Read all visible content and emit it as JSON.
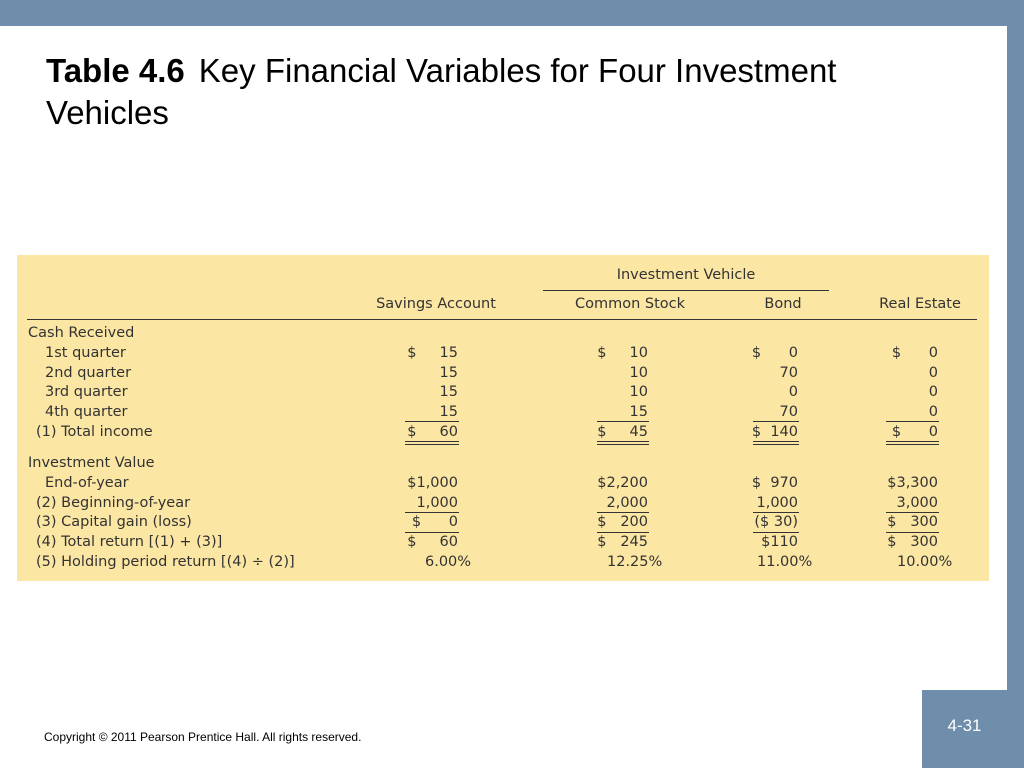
{
  "slide": {
    "title_bold": "Table 4.6",
    "title_rest": "Key Financial Variables for Four Investment Vehicles",
    "copyright": "Copyright © 2011 Pearson Prentice Hall. All rights reserved.",
    "page_number": "4-31",
    "colors": {
      "frame": "#6f8eab",
      "table_background": "#fbe6a4"
    }
  },
  "table": {
    "group_header": "Investment Vehicle",
    "columns": [
      "Savings Account",
      "Common Stock",
      "Bond",
      "Real Estate"
    ],
    "sections": {
      "cash": "Cash Received",
      "value": "Investment Value"
    },
    "rows": {
      "q1": {
        "label": "1st quarter",
        "savings": "$     15",
        "stock": "$     10",
        "bond": "$      0",
        "realestate": "$      0"
      },
      "q2": {
        "label": "2nd quarter",
        "savings": "15",
        "stock": "10",
        "bond": "70",
        "realestate": "0"
      },
      "q3": {
        "label": "3rd quarter",
        "savings": "15",
        "stock": "10",
        "bond": "0",
        "realestate": "0"
      },
      "q4": {
        "label": "4th quarter",
        "savings": "15",
        "stock": "15",
        "bond": "70",
        "realestate": "0"
      },
      "total_income": {
        "label": "(1) Total income",
        "savings": "$     60",
        "stock": "$     45",
        "bond": "$  140",
        "realestate": "$      0"
      },
      "end_of_year": {
        "label": "End-of-year",
        "savings": "$1,000",
        "stock": "$2,200",
        "bond": "$  970",
        "realestate": "$3,300"
      },
      "beginning": {
        "label": "(2) Beginning-of-year",
        "savings": "1,000",
        "stock": "2,000",
        "bond": "1,000",
        "realestate": "3,000"
      },
      "capital_gain": {
        "label": "(3) Capital gain (loss)",
        "savings": "$      0",
        "stock": "$   200",
        "bond": "($ 30)",
        "realestate": "$   300"
      },
      "total_return": {
        "label": "(4) Total return [(1) + (3)]",
        "savings": "$     60",
        "stock": "$   245",
        "bond": "$110",
        "realestate": "$   300"
      },
      "hpr": {
        "label": "(5) Holding period return [(4) ÷ (2)]",
        "savings": "6.00%",
        "stock": "12.25%",
        "bond": "11.00%",
        "realestate": "10.00%"
      }
    }
  }
}
